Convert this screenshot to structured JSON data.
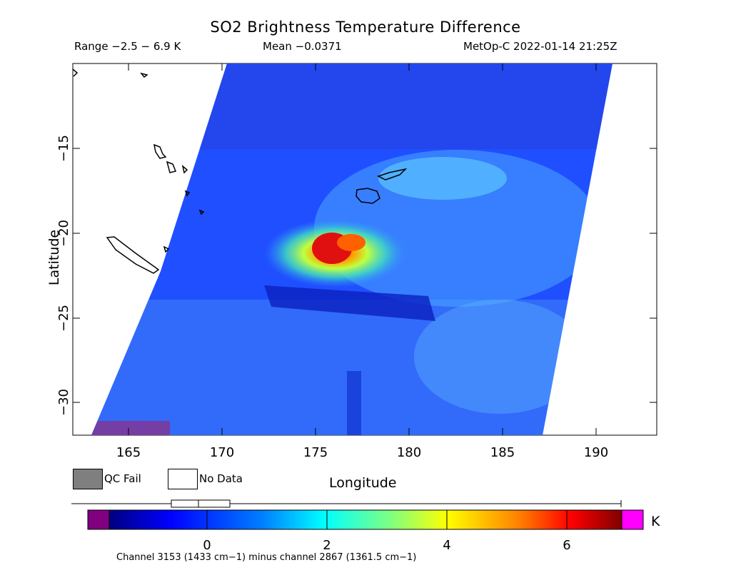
{
  "header": {
    "title": "SO2 Brightness Temperature Difference",
    "range": "Range −2.5 − 6.9 K",
    "mean": "Mean −0.0371",
    "satellite_time": "MetOp-C 2022-01-14 21:25Z"
  },
  "axes": {
    "xlabel": "Longitude",
    "ylabel": "Latitude",
    "x_ticks": [
      "165",
      "170",
      "175",
      "180",
      "185",
      "190"
    ],
    "y_ticks": [
      "−15",
      "−20",
      "−25",
      "−30"
    ],
    "x_range": [
      162.5,
      193
    ],
    "y_range": [
      -32,
      -10
    ]
  },
  "legend": {
    "qc_fail": "QC Fail",
    "no_data": "No Data",
    "qc_fail_color": "#7f7f7f"
  },
  "colorbar": {
    "unit": "K",
    "ticks": [
      "0",
      "2",
      "4",
      "6"
    ],
    "min": -2.5,
    "max": 6.9,
    "under_color": "#800080",
    "over_color": "#ff00ff"
  },
  "footnote": "Channel 3153 (1433 cm−1) minus channel 2867 (1361.5 cm−1)",
  "map_data": {
    "swath": "satellite swath from upper-left to lower-right",
    "plume_center": "approx 176E, 21S",
    "plume_peak_value": 6.9,
    "islands": [
      "New Caledonia",
      "Vanuatu",
      "Fiji"
    ]
  }
}
